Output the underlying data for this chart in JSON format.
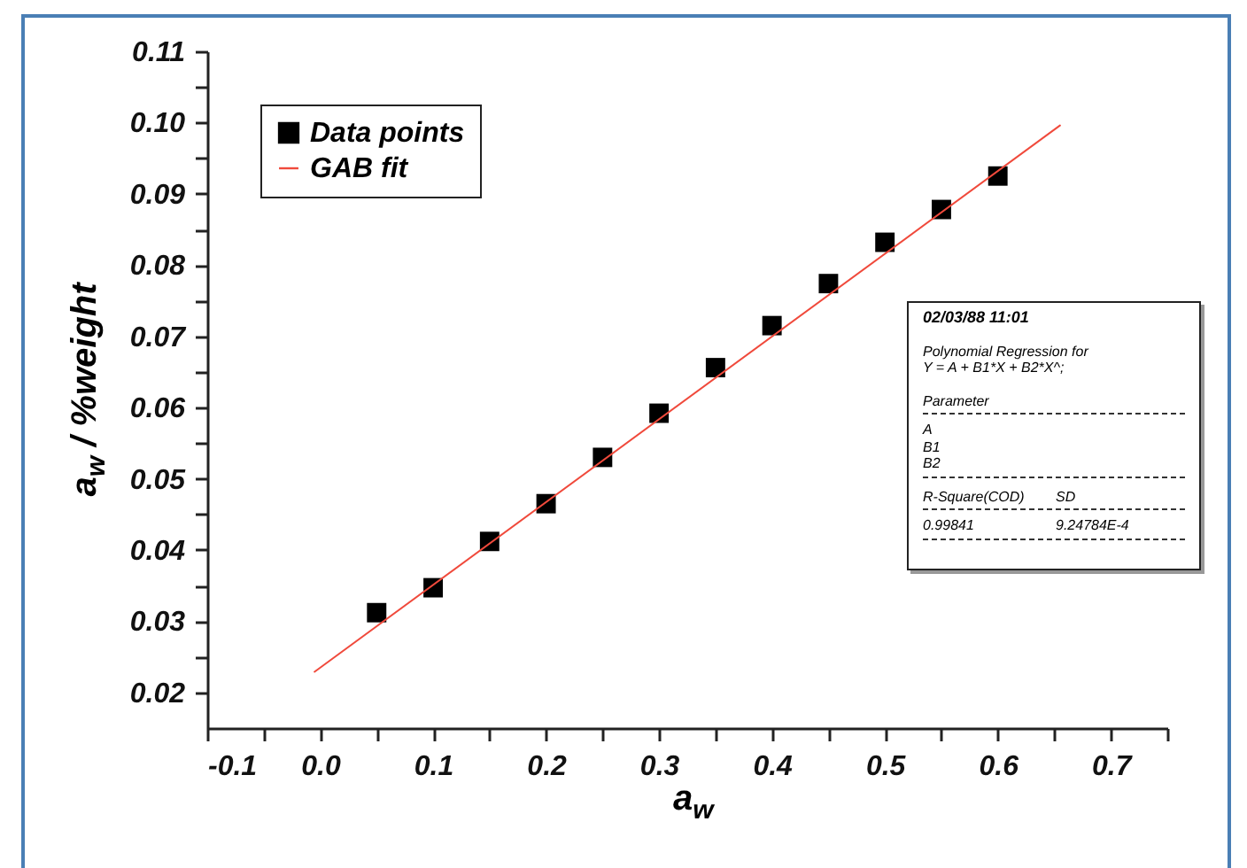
{
  "chart_data": {
    "type": "scatter",
    "xlabel": "a$_{w}$",
    "ylabel": "a$_{w}$ / %weight",
    "legend": "top left",
    "xlim": [
      -0.1,
      0.75
    ],
    "ylim": [
      0.015,
      0.11
    ],
    "xticks": [
      -0.1,
      {
        "value": -0.05,
        "label": null
      },
      {
        "value": 0.0,
        "label": "0.0"
      },
      {
        "value": 0.05,
        "label": null
      },
      0.1,
      {
        "value": 0.15,
        "label": null
      },
      0.2,
      {
        "value": 0.25,
        "label": null
      },
      0.3,
      {
        "value": 0.35,
        "label": null
      },
      0.4,
      {
        "value": 0.45,
        "label": null
      },
      0.5,
      {
        "value": 0.55,
        "label": null
      },
      0.6,
      {
        "value": 0.65,
        "label": null
      },
      0.7,
      {
        "value": 0.75,
        "label": null
      }
    ],
    "yticks": [
      {
        "value": 0.02,
        "label": "0.02"
      },
      {
        "value": 0.025,
        "label": null
      },
      {
        "value": 0.03,
        "label": "0.03"
      },
      {
        "value": 0.035,
        "label": null
      },
      {
        "value": 0.04,
        "label": "0.04"
      },
      {
        "value": 0.045,
        "label": null
      },
      {
        "value": 0.05,
        "label": "0.05"
      },
      {
        "value": 0.055,
        "label": null
      },
      {
        "value": 0.06,
        "label": "0.06"
      },
      {
        "value": 0.065,
        "label": null
      },
      {
        "value": 0.07,
        "label": "0.07"
      },
      {
        "value": 0.075,
        "label": null
      },
      {
        "value": 0.08,
        "label": "0.08"
      },
      {
        "value": 0.085,
        "label": null
      },
      {
        "value": 0.09,
        "label": "0.09"
      },
      {
        "value": 0.095,
        "label": null
      },
      {
        "value": 0.1,
        "label": "0.10"
      },
      {
        "value": 0.105,
        "label": null
      },
      {
        "value": 0.11,
        "label": "0.11"
      }
    ],
    "x": [
      0.05,
      0.1,
      0.15,
      0.2,
      0.25,
      0.3,
      0.35,
      0.4,
      0.45,
      0.5,
      0.55,
      0.6
    ],
    "series": [
      {
        "name": "Data points",
        "marker": "square",
        "color": "#000000",
        "values": [
          0.0312,
          0.0347,
          0.0412,
          0.0465,
          0.053,
          0.0592,
          0.0656,
          0.0715,
          0.0774,
          0.0832,
          0.0878,
          0.0925
        ]
      },
      {
        "name": "GAB fit",
        "type": "line",
        "color": "#f04a3c",
        "x": [
          -0.005,
          0.655
        ],
        "values": [
          0.0229,
          0.0996
        ]
      }
    ],
    "annotations": [
      "02/03/88 11:01",
      "Polynomial Regression for",
      "Y = A + B1*X + B2*X^;",
      "Parameter",
      "A",
      "B1",
      "B2",
      "R-Square(COD)",
      "SD",
      "0.99841",
      "9.24784E-4"
    ]
  }
}
